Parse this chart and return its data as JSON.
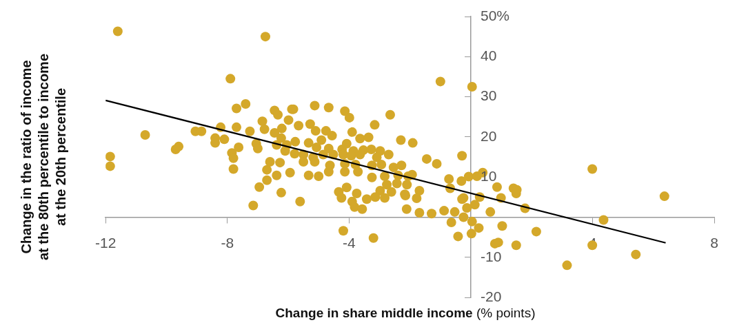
{
  "chart_data": {
    "type": "scatter",
    "xlabel": "Change in share middle income (% points)",
    "ylabel": "Change in the ratio of income at the 80th percentile to income at the 20th percentile",
    "xlim": [
      -12,
      8
    ],
    "ylim": [
      -20,
      50
    ],
    "xticks": [
      -12,
      -8,
      -4,
      4,
      8
    ],
    "yticks": [
      {
        "value": 50,
        "label": "50%"
      },
      40,
      30,
      20,
      10,
      -10,
      -20
    ],
    "grid": false,
    "legend": false,
    "marker": "circle",
    "series": [
      {
        "color": "#d4a82a",
        "x": [
          -11.6,
          -6.75,
          -11.85,
          -11.85,
          -10.7,
          -9.7,
          -9.6,
          -9.05,
          -8.85,
          -8.4,
          -8.4,
          -8.1,
          -7.9,
          -7.85,
          -7.8,
          -7.8,
          -7.7,
          -7.7,
          -7.4,
          -7.15,
          -6.95,
          -6.7,
          -6.7,
          -6.85,
          -7.05,
          -6.6,
          -6.45,
          -6.34,
          -5.88,
          -6.78,
          -6.45,
          -6.21,
          -6.23,
          -7.26,
          -7.0,
          -6.38,
          -6.1,
          -6.27,
          -6.38,
          -6.23,
          -7.63,
          -8.22,
          -5.83,
          -5.13,
          -4.67,
          -4.14,
          -3.99,
          -2.65,
          -3.16,
          -1.0,
          0.04,
          -5.99,
          -5.66,
          -5.28,
          -5.1,
          -4.76,
          -4.56,
          -3.9,
          -3.64,
          -3.36,
          -2.3,
          -1.91,
          -5.77,
          -5.33,
          -4.91,
          -6.05,
          -5.07,
          -4.67,
          -4.23,
          -4.08,
          -3.86,
          -3.53,
          -3.27,
          -2.98,
          -5.79,
          -5.5,
          -5.18,
          -4.85,
          -4.52,
          -4.19,
          -3.93,
          -3.64,
          -3.09,
          -2.7,
          -1.45,
          -1.12,
          -0.29,
          -5.5,
          -5.13,
          -4.63,
          -4.14,
          -3.79,
          -3.25,
          -2.94,
          -2.54,
          -2.28,
          -5.94,
          -5.33,
          -5.0,
          -4.67,
          -4.14,
          -3.71,
          -3.25,
          -2.83,
          -2.39,
          -2.06,
          -1.93,
          -0.72,
          -0.31,
          -0.07,
          0.2,
          -2.76,
          -2.43,
          -2.1,
          -0.68,
          -4.34,
          -4.08,
          -3.75,
          -2.98,
          -2.61,
          -2.17,
          -1.69,
          -5.61,
          -4.25,
          -3.9,
          -3.42,
          -3.14,
          -2.83,
          -2.15,
          -1.78,
          -0.29,
          -3.82,
          -3.57,
          -2.11,
          -1.69,
          -1.29,
          -0.88,
          -0.53,
          -0.24,
          -0.64,
          -4.19,
          -3.2,
          -0.42,
          0.02,
          0.39,
          0.86,
          0.99,
          1.4,
          1.51,
          1.49,
          1.78,
          0.29,
          0.13,
          -0.24,
          -0.13,
          0.64,
          0.04,
          0.26,
          1.03,
          2.15,
          0.79,
          0.9,
          1.49,
          3.99,
          6.36,
          4.36,
          3.99,
          5.42,
          3.16
        ],
        "values": [
          46.3,
          45,
          15.1,
          12.7,
          20.5,
          16.9,
          17.6,
          21.4,
          21.4,
          19.7,
          18.5,
          19.4,
          34.5,
          16,
          14.7,
          12,
          22.4,
          27.1,
          28.2,
          2.9,
          7.5,
          11.8,
          9.2,
          23.9,
          18.3,
          13.8,
          26.6,
          25.5,
          26.9,
          21.9,
          21,
          22.1,
          19.7,
          21.4,
          17.1,
          18,
          16.5,
          13.6,
          10.4,
          6.1,
          17.4,
          22.4,
          26.9,
          27.8,
          27.3,
          26.4,
          24.8,
          25.5,
          23,
          33.8,
          32.5,
          24.2,
          22.8,
          23.2,
          21.5,
          21.5,
          20.3,
          21.2,
          19.6,
          19.9,
          19.2,
          18.5,
          18.8,
          18.5,
          19.2,
          18,
          17.4,
          17.1,
          16.9,
          18.3,
          16.5,
          16.7,
          16.9,
          16.5,
          15.8,
          15.6,
          14.9,
          15.6,
          15.6,
          15.6,
          15.3,
          15.6,
          14.9,
          15.6,
          14.5,
          13.3,
          15.3,
          13.8,
          13.8,
          12.9,
          13.3,
          13.1,
          12.9,
          13.1,
          12.4,
          12.9,
          11.1,
          10.4,
          10.2,
          11.3,
          11.3,
          11.3,
          9.9,
          10.2,
          10.4,
          10.2,
          10.6,
          9.5,
          9,
          10.1,
          10.2,
          8.1,
          8.4,
          8.1,
          7.2,
          6.3,
          7.4,
          5.9,
          6.6,
          6.3,
          5.7,
          6.6,
          3.9,
          4.8,
          3.9,
          4.5,
          5,
          4.8,
          5.4,
          4.7,
          4.5,
          2.5,
          2,
          2,
          1.1,
          0.9,
          1.6,
          1.3,
          0,
          -1.3,
          -3.4,
          -5.2,
          -4.8,
          -4.1,
          11.1,
          7.5,
          4.8,
          7.2,
          6.8,
          5.9,
          2.2,
          5,
          3.1,
          4.8,
          2.3,
          1.3,
          -1.1,
          -2.7,
          -2.2,
          -3.6,
          -6.6,
          -6.3,
          -7,
          12,
          5.2,
          -0.7,
          -7,
          -9.3,
          -12
        ]
      },
      {
        "type": "line",
        "color": "#000000",
        "line_style": "solid",
        "marker": "none",
        "x": [
          -12,
          6.4
        ],
        "values": [
          29.1,
          -6.4
        ]
      }
    ]
  }
}
